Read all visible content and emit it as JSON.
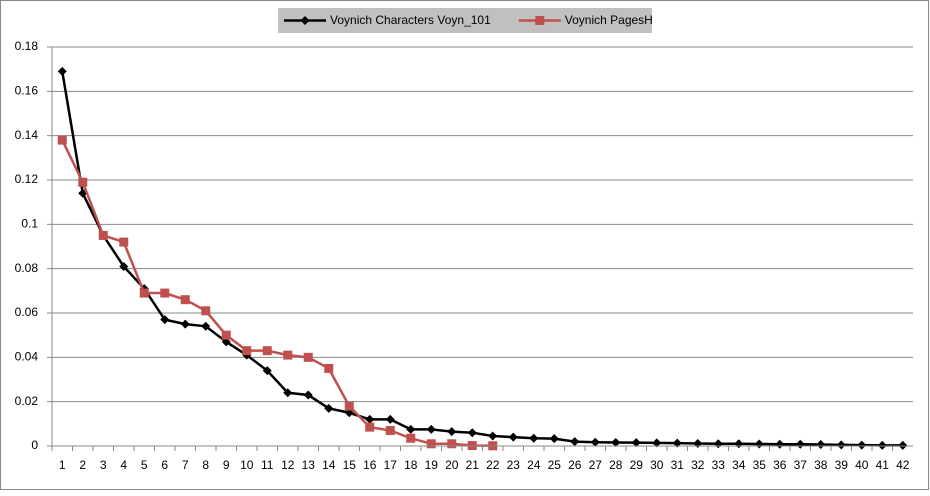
{
  "chart_data": {
    "type": "line",
    "categories": [
      "1",
      "2",
      "3",
      "4",
      "5",
      "6",
      "7",
      "8",
      "9",
      "10",
      "11",
      "12",
      "13",
      "14",
      "15",
      "16",
      "17",
      "18",
      "19",
      "20",
      "21",
      "22",
      "23",
      "24",
      "25",
      "26",
      "27",
      "28",
      "29",
      "30",
      "31",
      "32",
      "33",
      "34",
      "35",
      "36",
      "37",
      "38",
      "39",
      "40",
      "41",
      "42"
    ],
    "series": [
      {
        "name": "Voynich Characters Voyn_101",
        "color": "#000000",
        "marker": "diamond",
        "values": [
          0.169,
          0.114,
          0.095,
          0.081,
          0.071,
          0.057,
          0.055,
          0.054,
          0.047,
          0.041,
          0.034,
          0.024,
          0.023,
          0.017,
          0.015,
          0.012,
          0.012,
          0.0075,
          0.0075,
          0.0065,
          0.006,
          0.0045,
          0.004,
          0.0035,
          0.0033,
          0.002,
          0.0017,
          0.0016,
          0.0015,
          0.0014,
          0.0013,
          0.0011,
          0.001,
          0.001,
          0.0009,
          0.0008,
          0.0008,
          0.0007,
          0.0005,
          0.0004,
          0.0003,
          0.0003
        ]
      },
      {
        "name": "Voynich PagesH",
        "color": "#c0504d",
        "marker": "square",
        "values": [
          0.138,
          0.119,
          0.095,
          0.092,
          0.069,
          0.069,
          0.066,
          0.061,
          0.05,
          0.043,
          0.043,
          0.041,
          0.04,
          0.035,
          0.018,
          0.0085,
          0.007,
          0.0035,
          0.001,
          0.001,
          0.0002,
          0.0001,
          null,
          null,
          null,
          null,
          null,
          null,
          null,
          null,
          null,
          null,
          null,
          null,
          null,
          null,
          null,
          null,
          null,
          null,
          null,
          null
        ]
      }
    ],
    "ylim": [
      0,
      0.18
    ],
    "yticks": [
      0,
      0.02,
      0.04,
      0.06,
      0.08,
      0.1,
      0.12,
      0.14,
      0.16,
      0.18
    ],
    "grid": true,
    "legend": "top"
  }
}
